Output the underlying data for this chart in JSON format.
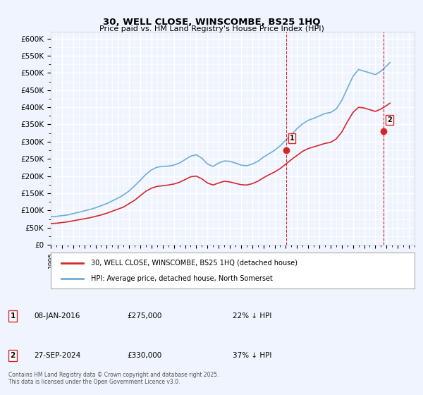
{
  "title": "30, WELL CLOSE, WINSCOMBE, BS25 1HQ",
  "subtitle": "Price paid vs. HM Land Registry's House Price Index (HPI)",
  "xlabel": "",
  "ylabel": "",
  "ylim": [
    0,
    620000
  ],
  "yticks": [
    0,
    50000,
    100000,
    150000,
    200000,
    250000,
    300000,
    350000,
    400000,
    450000,
    500000,
    550000,
    600000
  ],
  "ytick_labels": [
    "£0",
    "£50K",
    "£100K",
    "£150K",
    "£200K",
    "£250K",
    "£300K",
    "£350K",
    "£400K",
    "£450K",
    "£500K",
    "£550K",
    "£600K"
  ],
  "xlim_start": 1995.0,
  "xlim_end": 2027.5,
  "hpi_color": "#6baed6",
  "price_color": "#d62728",
  "marker1_x": 2016.03,
  "marker1_y": 275000,
  "marker2_x": 2024.75,
  "marker2_y": 330000,
  "marker1_label": "1",
  "marker2_label": "2",
  "legend_line1": "30, WELL CLOSE, WINSCOMBE, BS25 1HQ (detached house)",
  "legend_line2": "HPI: Average price, detached house, North Somerset",
  "annotation1": "1     08-JAN-2016          £275,000          22% ↓ HPI",
  "annotation2": "2     27-SEP-2024          £330,000          37% ↓ HPI",
  "footnote": "Contains HM Land Registry data © Crown copyright and database right 2025.\nThis data is licensed under the Open Government Licence v3.0.",
  "background_color": "#f0f4ff",
  "plot_background": "#f0f4ff",
  "grid_color": "#ffffff",
  "vline1_x": 2016.03,
  "vline2_x": 2024.75,
  "hpi_years": [
    1995,
    1995.5,
    1996,
    1996.5,
    1997,
    1997.5,
    1998,
    1998.5,
    1999,
    1999.5,
    2000,
    2000.5,
    2001,
    2001.5,
    2002,
    2002.5,
    2003,
    2003.5,
    2004,
    2004.5,
    2005,
    2005.5,
    2006,
    2006.5,
    2007,
    2007.5,
    2008,
    2008.5,
    2009,
    2009.5,
    2010,
    2010.5,
    2011,
    2011.5,
    2012,
    2012.5,
    2013,
    2013.5,
    2014,
    2014.5,
    2015,
    2015.5,
    2016,
    2016.5,
    2017,
    2017.5,
    2018,
    2018.5,
    2019,
    2019.5,
    2020,
    2020.5,
    2021,
    2021.5,
    2022,
    2022.5,
    2023,
    2023.5,
    2024,
    2024.5,
    2025,
    2025.3
  ],
  "hpi_values": [
    82000,
    83000,
    85000,
    87000,
    91000,
    95000,
    99000,
    103000,
    108000,
    114000,
    120000,
    128000,
    136000,
    145000,
    157000,
    172000,
    188000,
    205000,
    218000,
    226000,
    228000,
    229000,
    232000,
    238000,
    248000,
    258000,
    262000,
    252000,
    235000,
    228000,
    238000,
    244000,
    243000,
    238000,
    232000,
    230000,
    235000,
    243000,
    255000,
    265000,
    275000,
    288000,
    305000,
    320000,
    338000,
    352000,
    362000,
    368000,
    375000,
    382000,
    385000,
    395000,
    420000,
    455000,
    490000,
    510000,
    505000,
    500000,
    495000,
    505000,
    520000,
    530000
  ],
  "price_years": [
    1995,
    1995.5,
    1996,
    1996.5,
    1997,
    1997.5,
    1998,
    1998.5,
    1999,
    1999.5,
    2000,
    2000.5,
    2001,
    2001.5,
    2002,
    2002.5,
    2003,
    2003.5,
    2004,
    2004.5,
    2005,
    2005.5,
    2006,
    2006.5,
    2007,
    2007.5,
    2008,
    2008.5,
    2009,
    2009.5,
    2010,
    2010.5,
    2011,
    2011.5,
    2012,
    2012.5,
    2013,
    2013.5,
    2014,
    2014.5,
    2015,
    2015.5,
    2016,
    2016.5,
    2017,
    2017.5,
    2018,
    2018.5,
    2019,
    2019.5,
    2020,
    2020.5,
    2021,
    2021.5,
    2022,
    2022.5,
    2023,
    2023.5,
    2024,
    2024.5,
    2025,
    2025.3
  ],
  "price_values": [
    62000,
    63000,
    65000,
    67000,
    70000,
    73000,
    76000,
    79000,
    83000,
    87000,
    92000,
    98000,
    104000,
    110000,
    120000,
    130000,
    143000,
    156000,
    165000,
    170000,
    172000,
    174000,
    177000,
    182000,
    190000,
    198000,
    200000,
    192000,
    180000,
    174000,
    180000,
    185000,
    183000,
    179000,
    175000,
    174000,
    178000,
    185000,
    195000,
    204000,
    212000,
    222000,
    235000,
    248000,
    260000,
    272000,
    280000,
    285000,
    290000,
    295000,
    298000,
    308000,
    328000,
    358000,
    385000,
    400000,
    398000,
    393000,
    388000,
    395000,
    405000,
    412000
  ]
}
